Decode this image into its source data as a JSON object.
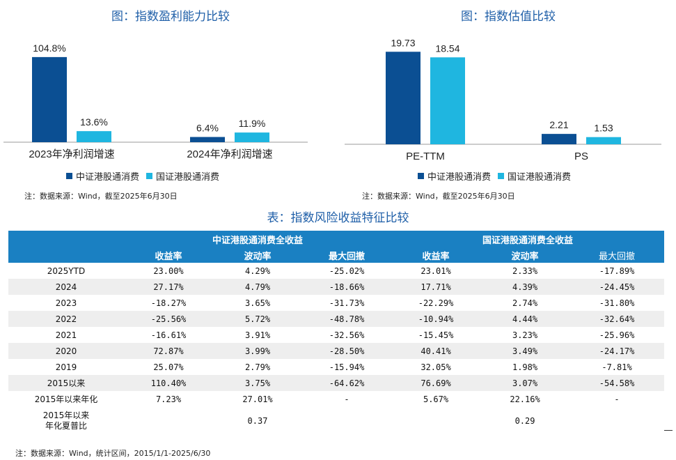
{
  "charts": {
    "left": {
      "title": "图：指数盈利能力比较",
      "note": "注：数据来源：Wind，截至2025年6月30日"
    },
    "right": {
      "title": "图：指数估值比较",
      "note": "注：数据来源：Wind，截至2025年6月30日"
    }
  },
  "legend": {
    "series1": "中证港股通消费",
    "series2": "国证港股通消费",
    "color1": "#0b4f93",
    "color2": "#1fb6e0"
  },
  "chart_data": [
    {
      "type": "bar",
      "title": "图：指数盈利能力比较",
      "categories": [
        "2023年净利润增速",
        "2024年净利润增速"
      ],
      "series": [
        {
          "name": "中证港股通消费",
          "values": [
            104.8,
            6.4
          ],
          "labels": [
            "104.8%",
            "6.4%"
          ]
        },
        {
          "name": "国证港股通消费",
          "values": [
            13.6,
            11.9
          ],
          "labels": [
            "13.6%",
            "11.9%"
          ]
        }
      ],
      "ylim": [
        0,
        115
      ],
      "grid": false,
      "legend": "bottom"
    },
    {
      "type": "bar",
      "title": "图：指数估值比较",
      "categories": [
        "PE-TTM",
        "PS"
      ],
      "series": [
        {
          "name": "中证港股通消费",
          "values": [
            19.73,
            2.21
          ],
          "labels": [
            "19.73",
            "2.21"
          ]
        },
        {
          "name": "国证港股通消费",
          "values": [
            18.54,
            1.53
          ],
          "labels": [
            "18.54",
            "1.53"
          ]
        }
      ],
      "ylim": [
        0,
        22
      ],
      "grid": false,
      "legend": "bottom"
    }
  ],
  "table": {
    "title": "表：指数风险收益特征比较",
    "group1": "中证港股通消费全收益",
    "group2": "国证港股通消费全收益",
    "columns": [
      "收益率",
      "波动率",
      "最大回撤",
      "收益率",
      "波动率",
      "最大回撤"
    ],
    "rows": [
      {
        "label": "2025YTD",
        "cells": [
          "23.00%",
          "4.29%",
          "-25.02%",
          "23.01%",
          "2.33%",
          "-17.89%"
        ]
      },
      {
        "label": "2024",
        "cells": [
          "27.17%",
          "4.79%",
          "-18.66%",
          "17.71%",
          "4.39%",
          "-24.45%"
        ]
      },
      {
        "label": "2023",
        "cells": [
          "-18.27%",
          "3.65%",
          "-31.73%",
          "-22.29%",
          "2.74%",
          "-31.80%"
        ]
      },
      {
        "label": "2022",
        "cells": [
          "-25.56%",
          "5.72%",
          "-48.78%",
          "-10.94%",
          "4.44%",
          "-32.64%"
        ]
      },
      {
        "label": "2021",
        "cells": [
          "-16.61%",
          "3.91%",
          "-32.56%",
          "-15.45%",
          "3.23%",
          "-25.96%"
        ]
      },
      {
        "label": "2020",
        "cells": [
          "72.87%",
          "3.99%",
          "-28.50%",
          "40.41%",
          "3.49%",
          "-24.17%"
        ]
      },
      {
        "label": "2019",
        "cells": [
          "25.07%",
          "2.79%",
          "-15.94%",
          "32.05%",
          "1.98%",
          "-7.81%"
        ]
      },
      {
        "label": "2015以来",
        "cells": [
          "110.40%",
          "3.75%",
          "-64.62%",
          "76.69%",
          "3.07%",
          "-54.58%"
        ]
      },
      {
        "label": "2015年以来年化",
        "cells": [
          "7.23%",
          "27.01%",
          "-",
          "5.67%",
          "22.16%",
          "-"
        ]
      }
    ],
    "sharpe": {
      "label_line1": "2015年以来",
      "label_line2": "年化夏普比",
      "value1": "0.37",
      "value2": "0.29"
    },
    "note": "注：数据来源：Wind，统计区间，2015/1/1-2025/6/30"
  }
}
